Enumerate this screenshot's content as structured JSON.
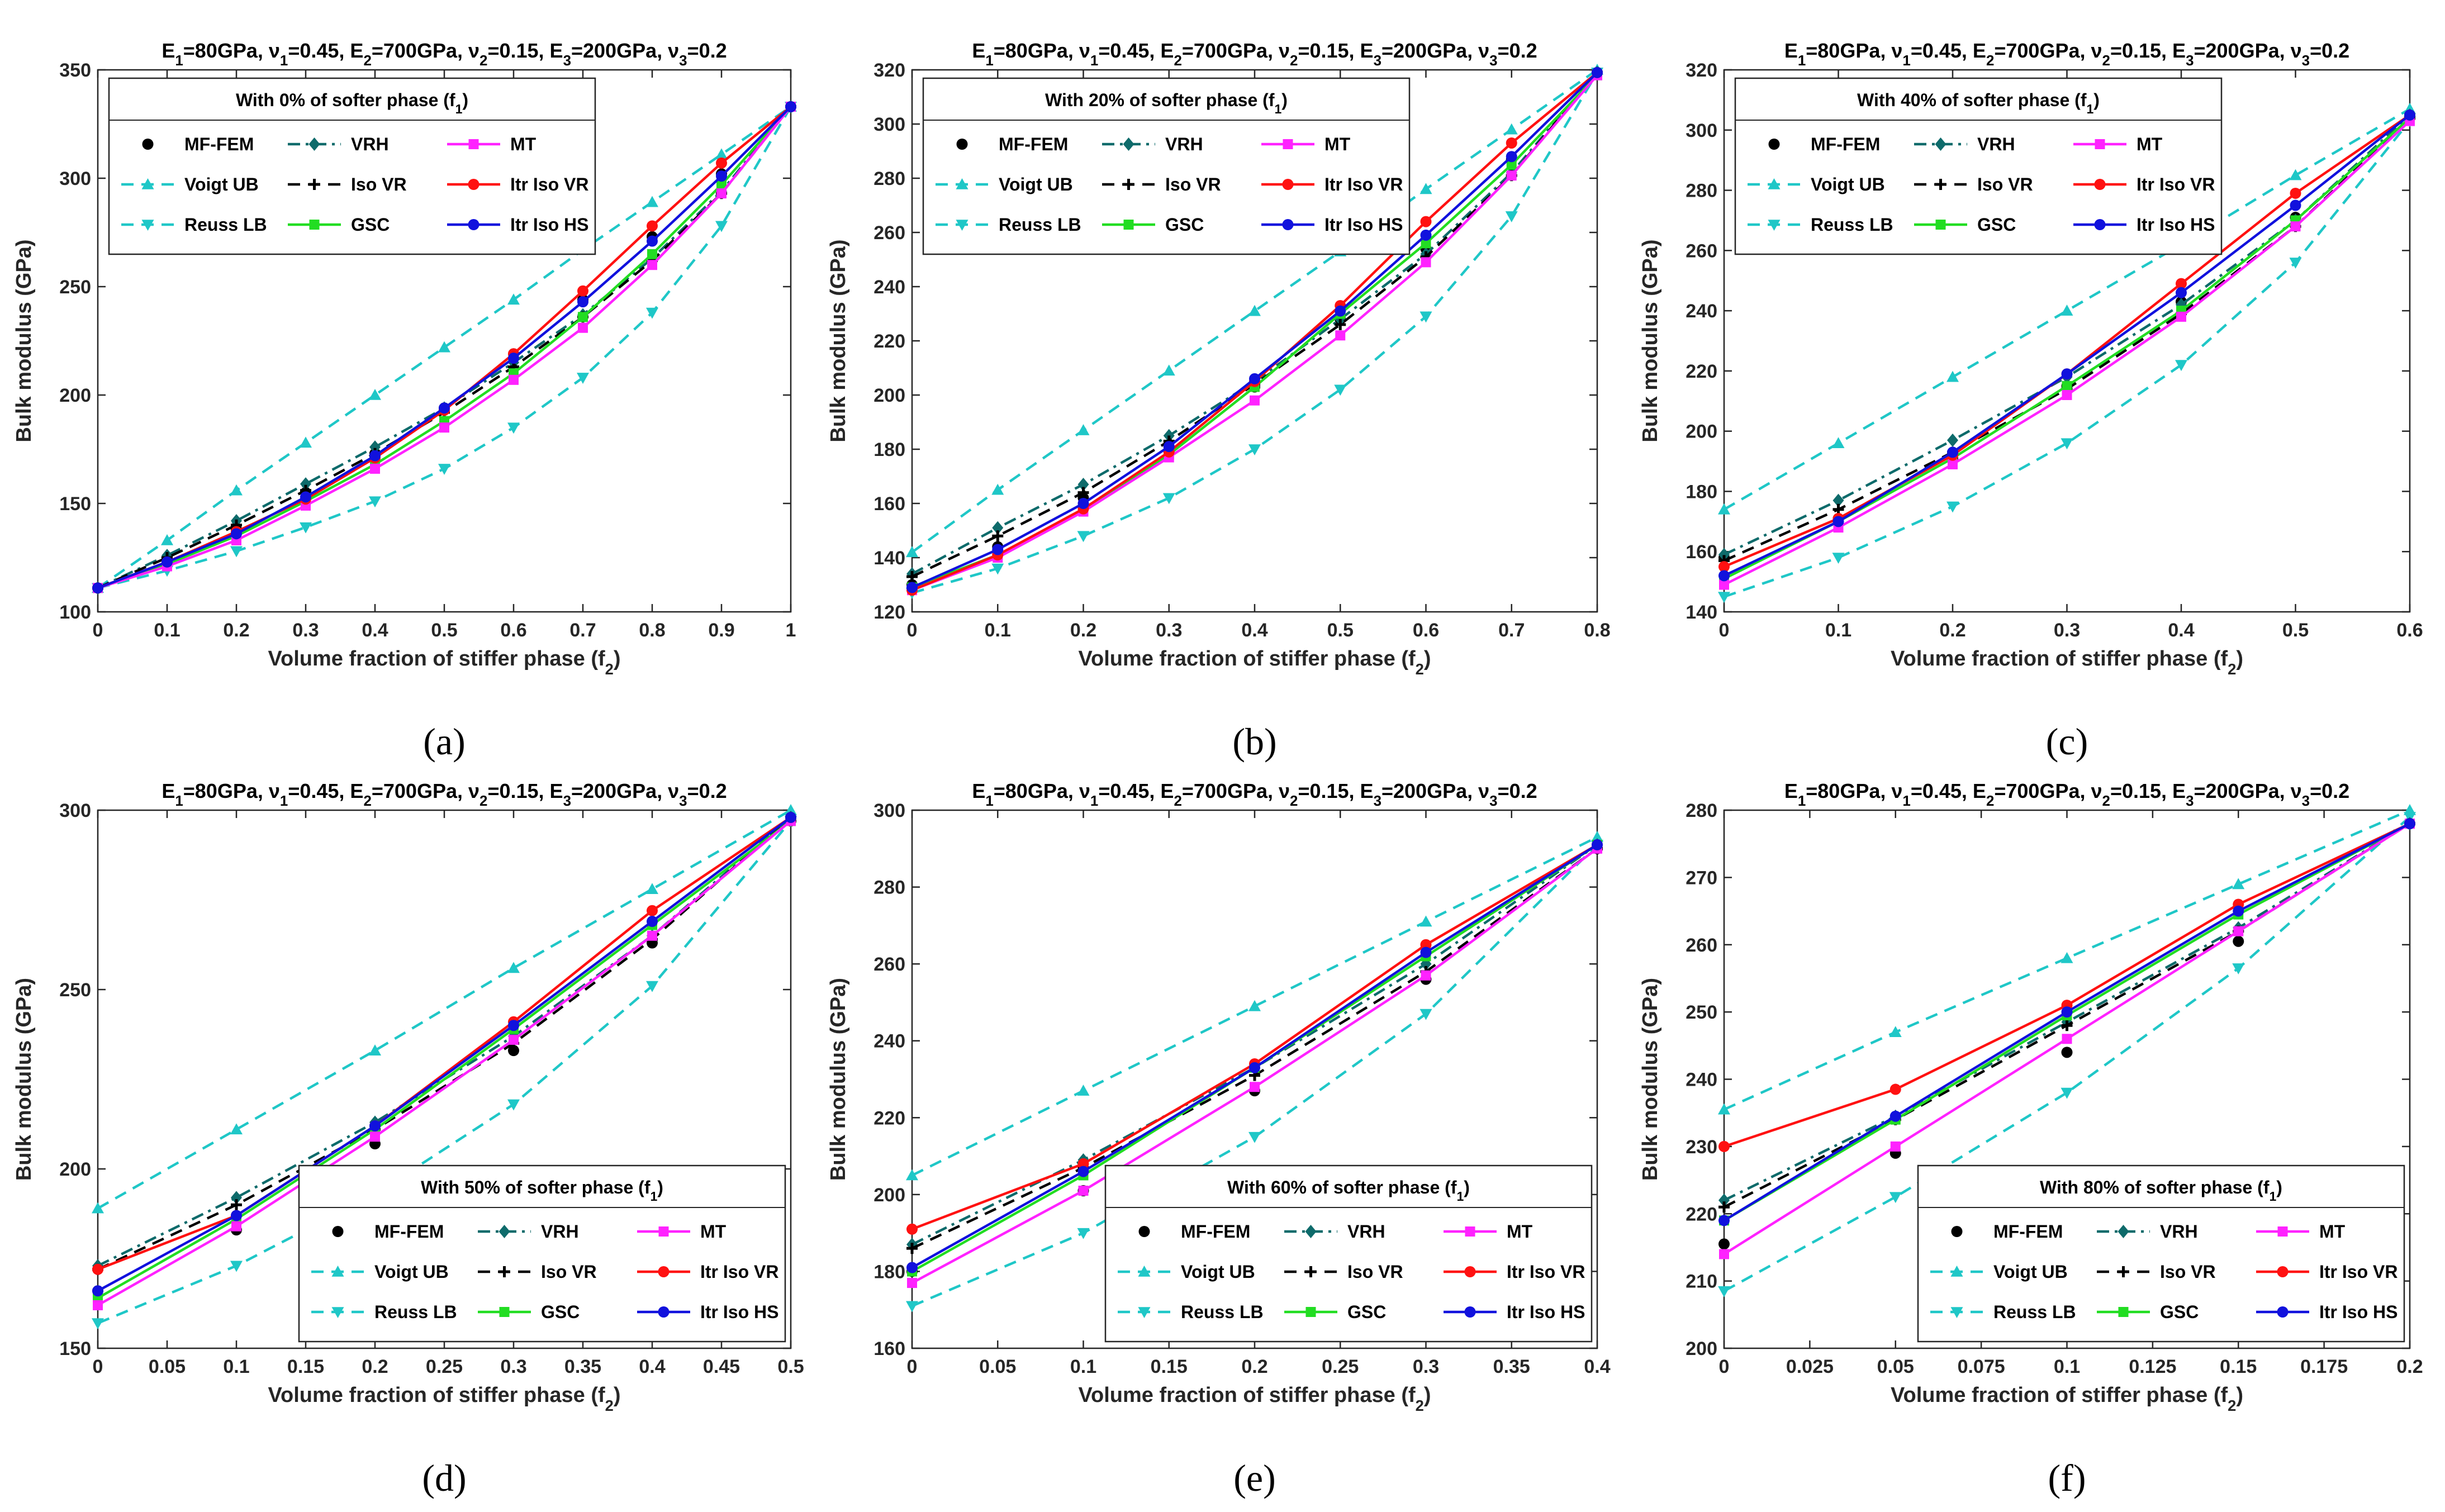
{
  "figure": {
    "panel_title_parts": {
      "e1": "E",
      "e1sub": "1",
      "e1val": "=80GPa,  ",
      "n1": "ν",
      "n1sub": "1",
      "n1val": "=0.45,  ",
      "e2": "E",
      "e2sub": "2",
      "e2val": "=700GPa,  ",
      "n2": "ν",
      "n2sub": "2",
      "n2val": "=0.15,  ",
      "e3": "E",
      "e3sub": "3",
      "e3val": "=200GPa,  ",
      "n3": "ν",
      "n3sub": "3",
      "n3val": "=0.2"
    },
    "xlabel_main": "Volume fraction of stiffer phase (f",
    "xlabel_sub": "2",
    "xlabel_close": ")",
    "ylabel": "Bulk modulus (GPa)",
    "legend_title_prefix": "With ",
    "legend_title_suffix": " of softer phase (f",
    "legend_title_sub": "1",
    "legend_title_close": ")",
    "series_styles": [
      {
        "name": "MF-FEM",
        "color": "#000000",
        "marker": "dot",
        "dash": "none"
      },
      {
        "name": "Voigt UB",
        "color": "#1fc7c7",
        "marker": "tri-up",
        "dash": "dash"
      },
      {
        "name": "Reuss LB",
        "color": "#1fc7c7",
        "marker": "tri-down",
        "dash": "dash"
      },
      {
        "name": "VRH",
        "color": "#0e6b6b",
        "marker": "diamond",
        "dash": "dashdot"
      },
      {
        "name": "Iso VR",
        "color": "#000000",
        "marker": "plus",
        "dash": "dash"
      },
      {
        "name": "GSC",
        "color": "#22dd22",
        "marker": "square",
        "dash": "solid"
      },
      {
        "name": "MT",
        "color": "#ff22ff",
        "marker": "square",
        "dash": "solid"
      },
      {
        "name": "Itr Iso VR",
        "color": "#ff1111",
        "marker": "dot",
        "dash": "solid"
      },
      {
        "name": "Itr Iso HS",
        "color": "#1111dd",
        "marker": "dot",
        "dash": "solid"
      }
    ]
  },
  "chart_data": [
    {
      "type": "line",
      "panel_label": "(a)",
      "legend_percent": "0%",
      "legend_position": "top-left",
      "xlim": [
        0,
        1
      ],
      "ylim": [
        100,
        350
      ],
      "xticks": [
        0,
        0.1,
        0.2,
        0.3,
        0.4,
        0.5,
        0.6,
        0.7,
        0.8,
        0.9,
        1
      ],
      "xtick_labels": [
        "0",
        "0.1",
        "0.2",
        "0.3",
        "0.4",
        "0.5",
        "0.6",
        "0.7",
        "0.8",
        "0.9",
        "1"
      ],
      "yticks": [
        100,
        150,
        200,
        250,
        300,
        350
      ],
      "ytick_labels": [
        "100",
        "150",
        "200",
        "250",
        "300",
        "350"
      ],
      "x": [
        0,
        0.1,
        0.2,
        0.3,
        0.4,
        0.5,
        0.6,
        0.7,
        0.8,
        0.9,
        1
      ],
      "series": [
        {
          "name": "MF-FEM",
          "values": [
            111,
            124,
            138,
            155,
            173,
            194,
            219,
            244,
            273,
            302,
            333
          ]
        },
        {
          "name": "Voigt UB",
          "values": [
            111,
            133,
            156,
            178,
            200,
            222,
            244,
            267,
            289,
            311,
            333
          ]
        },
        {
          "name": "Reuss LB",
          "values": [
            111,
            119,
            128,
            139,
            151,
            166,
            185,
            208,
            238,
            278,
            333
          ]
        },
        {
          "name": "VRH",
          "values": [
            111,
            126,
            142,
            159,
            176,
            194,
            215,
            237,
            263,
            294,
            333
          ]
        },
        {
          "name": "Iso VR",
          "values": [
            111,
            125,
            140,
            156,
            173,
            192,
            213,
            236,
            262,
            293,
            333
          ]
        },
        {
          "name": "GSC",
          "values": [
            111,
            122,
            135,
            151,
            168,
            188,
            210,
            236,
            265,
            297,
            333
          ]
        },
        {
          "name": "MT",
          "values": [
            111,
            121,
            133,
            149,
            166,
            185,
            207,
            231,
            260,
            293,
            333
          ]
        },
        {
          "name": "Itr Iso VR",
          "values": [
            111,
            123,
            137,
            152,
            171,
            193,
            219,
            248,
            278,
            307,
            333
          ]
        },
        {
          "name": "Itr Iso HS",
          "values": [
            111,
            123,
            136,
            153,
            172,
            194,
            217,
            243,
            271,
            301,
            333
          ]
        }
      ]
    },
    {
      "type": "line",
      "panel_label": "(b)",
      "legend_percent": "20%",
      "legend_position": "top-left",
      "xlim": [
        0,
        0.8
      ],
      "ylim": [
        120,
        320
      ],
      "xticks": [
        0,
        0.1,
        0.2,
        0.3,
        0.4,
        0.5,
        0.6,
        0.7,
        0.8
      ],
      "xtick_labels": [
        "0",
        "0.1",
        "0.2",
        "0.3",
        "0.4",
        "0.5",
        "0.6",
        "0.7",
        "0.8"
      ],
      "yticks": [
        120,
        140,
        160,
        180,
        200,
        220,
        240,
        260,
        280,
        300,
        320
      ],
      "ytick_labels": [
        "120",
        "140",
        "160",
        "180",
        "200",
        "220",
        "240",
        "260",
        "280",
        "300",
        "320"
      ],
      "x": [
        0,
        0.1,
        0.2,
        0.3,
        0.4,
        0.5,
        0.6,
        0.7,
        0.8
      ],
      "series": [
        {
          "name": "MF-FEM",
          "values": [
            130,
            144,
            162,
            181,
            203,
            228,
            254,
            287,
            319
          ]
        },
        {
          "name": "Voigt UB",
          "values": [
            142,
            165,
            187,
            209,
            231,
            253,
            276,
            298,
            320
          ]
        },
        {
          "name": "Reuss LB",
          "values": [
            127,
            136,
            148,
            162,
            180,
            202,
            229,
            266,
            319
          ]
        },
        {
          "name": "VRH",
          "values": [
            134,
            151,
            167,
            185,
            205,
            228,
            252,
            282,
            319
          ]
        },
        {
          "name": "Iso VR",
          "values": [
            133,
            148,
            164,
            183,
            204,
            226,
            251,
            281,
            319
          ]
        },
        {
          "name": "GSC",
          "values": [
            129,
            141,
            157,
            178,
            203,
            230,
            256,
            285,
            318
          ]
        },
        {
          "name": "MT",
          "values": [
            128,
            140,
            157,
            177,
            198,
            222,
            249,
            281,
            318
          ]
        },
        {
          "name": "Itr Iso VR",
          "values": [
            128,
            141,
            158,
            179,
            205,
            233,
            264,
            293,
            319
          ]
        },
        {
          "name": "Itr Iso HS",
          "values": [
            129,
            143,
            160,
            181,
            206,
            231,
            259,
            288,
            319
          ]
        }
      ]
    },
    {
      "type": "line",
      "panel_label": "(c)",
      "legend_percent": "40%",
      "legend_position": "top-left",
      "xlim": [
        0,
        0.6
      ],
      "ylim": [
        140,
        320
      ],
      "xticks": [
        0,
        0.1,
        0.2,
        0.3,
        0.4,
        0.5,
        0.6
      ],
      "xtick_labels": [
        "0",
        "0.1",
        "0.2",
        "0.3",
        "0.4",
        "0.5",
        "0.6"
      ],
      "yticks": [
        140,
        160,
        180,
        200,
        220,
        240,
        260,
        280,
        300,
        320
      ],
      "ytick_labels": [
        "140",
        "160",
        "180",
        "200",
        "220",
        "240",
        "260",
        "280",
        "300",
        "320"
      ],
      "x": [
        0,
        0.1,
        0.2,
        0.3,
        0.4,
        0.5,
        0.6
      ],
      "series": [
        {
          "name": "MF-FEM",
          "values": [
            158,
            171,
            191,
            215,
            243,
            271,
            304
          ]
        },
        {
          "name": "Voigt UB",
          "values": [
            174,
            196,
            218,
            240,
            262,
            285,
            307
          ]
        },
        {
          "name": "Reuss LB",
          "values": [
            145,
            158,
            175,
            196,
            222,
            256,
            303
          ]
        },
        {
          "name": "VRH",
          "values": [
            159,
            177,
            197,
            218,
            242,
            270,
            305
          ]
        },
        {
          "name": "Iso VR",
          "values": [
            157,
            174,
            193,
            214,
            239,
            268,
            304
          ]
        },
        {
          "name": "GSC",
          "values": [
            151,
            170,
            191,
            215,
            240,
            270,
            304
          ]
        },
        {
          "name": "MT",
          "values": [
            149,
            168,
            189,
            212,
            238,
            268,
            303
          ]
        },
        {
          "name": "Itr Iso VR",
          "values": [
            155,
            171,
            192,
            219,
            249,
            279,
            305
          ]
        },
        {
          "name": "Itr Iso HS",
          "values": [
            152,
            170,
            193,
            219,
            246,
            275,
            305
          ]
        }
      ]
    },
    {
      "type": "line",
      "panel_label": "(d)",
      "legend_percent": "50%",
      "legend_position": "bottom-right",
      "xlim": [
        0,
        0.5
      ],
      "ylim": [
        150,
        300
      ],
      "xticks": [
        0,
        0.05,
        0.1,
        0.15,
        0.2,
        0.25,
        0.3,
        0.35,
        0.4,
        0.45,
        0.5
      ],
      "xtick_labels": [
        "0",
        "0.05",
        "0.1",
        "0.15",
        "0.2",
        "0.25",
        "0.3",
        "0.35",
        "0.4",
        "0.45",
        "0.5"
      ],
      "yticks": [
        150,
        200,
        250,
        300
      ],
      "ytick_labels": [
        "150",
        "200",
        "250",
        "300"
      ],
      "x": [
        0,
        0.1,
        0.2,
        0.3,
        0.4,
        0.5
      ],
      "series": [
        {
          "name": "MF-FEM",
          "values": [
            166,
            183,
            207,
            233,
            263,
            297
          ]
        },
        {
          "name": "Voigt UB",
          "values": [
            189,
            211,
            233,
            256,
            278,
            300
          ]
        },
        {
          "name": "Reuss LB",
          "values": [
            157,
            173,
            193,
            218,
            251,
            297
          ]
        },
        {
          "name": "VRH",
          "values": [
            173,
            192,
            213,
            237,
            265,
            298
          ]
        },
        {
          "name": "Iso VR",
          "values": [
            172,
            190,
            211,
            235,
            264,
            298
          ]
        },
        {
          "name": "GSC",
          "values": [
            164,
            186,
            211,
            239,
            268,
            297
          ]
        },
        {
          "name": "MT",
          "values": [
            162,
            184,
            209,
            236,
            265,
            297
          ]
        },
        {
          "name": "Itr Iso VR",
          "values": [
            172,
            187,
            212,
            241,
            272,
            298
          ]
        },
        {
          "name": "Itr Iso HS",
          "values": [
            166,
            187,
            212,
            240,
            269,
            298
          ]
        }
      ]
    },
    {
      "type": "line",
      "panel_label": "(e)",
      "legend_percent": "60%",
      "legend_position": "bottom-right",
      "xlim": [
        0,
        0.4
      ],
      "ylim": [
        160,
        300
      ],
      "xticks": [
        0,
        0.05,
        0.1,
        0.15,
        0.2,
        0.25,
        0.3,
        0.35,
        0.4
      ],
      "xtick_labels": [
        "0",
        "0.05",
        "0.1",
        "0.15",
        "0.2",
        "0.25",
        "0.3",
        "0.35",
        "0.4"
      ],
      "yticks": [
        160,
        180,
        200,
        220,
        240,
        260,
        280,
        300
      ],
      "ytick_labels": [
        "160",
        "180",
        "200",
        "220",
        "240",
        "260",
        "280",
        "300"
      ],
      "x": [
        0,
        0.1,
        0.2,
        0.3,
        0.4
      ],
      "series": [
        {
          "name": "MF-FEM",
          "values": [
            180,
            201,
            227,
            256,
            290
          ]
        },
        {
          "name": "Voigt UB",
          "values": [
            205,
            227,
            249,
            271,
            293
          ]
        },
        {
          "name": "Reuss LB",
          "values": [
            171,
            190,
            215,
            247,
            291
          ]
        },
        {
          "name": "VRH",
          "values": [
            187,
            209,
            233,
            260,
            291
          ]
        },
        {
          "name": "Iso VR",
          "values": [
            186,
            207,
            231,
            258,
            290
          ]
        },
        {
          "name": "GSC",
          "values": [
            180,
            205,
            233,
            262,
            291
          ]
        },
        {
          "name": "MT",
          "values": [
            177,
            201,
            228,
            257,
            290
          ]
        },
        {
          "name": "Itr Iso VR",
          "values": [
            191,
            208,
            234,
            265,
            291
          ]
        },
        {
          "name": "Itr Iso HS",
          "values": [
            181,
            206,
            233,
            263,
            291
          ]
        }
      ]
    },
    {
      "type": "line",
      "panel_label": "(f)",
      "legend_percent": "80%",
      "legend_position": "bottom-right",
      "xlim": [
        0,
        0.2
      ],
      "ylim": [
        200,
        280
      ],
      "xticks": [
        0,
        0.025,
        0.05,
        0.075,
        0.1,
        0.125,
        0.15,
        0.175,
        0.2
      ],
      "xtick_labels": [
        "0",
        "0.025",
        "0.05",
        "0.075",
        "0.1",
        "0.125",
        "0.15",
        "0.175",
        "0.2"
      ],
      "yticks": [
        200,
        210,
        220,
        230,
        240,
        250,
        260,
        270,
        280
      ],
      "ytick_labels": [
        "200",
        "210",
        "220",
        "230",
        "240",
        "250",
        "260",
        "270",
        "280"
      ],
      "x": [
        0,
        0.05,
        0.1,
        0.15,
        0.2
      ],
      "series": [
        {
          "name": "MF-FEM",
          "values": [
            215.5,
            229,
            244,
            260.5,
            278
          ]
        },
        {
          "name": "Voigt UB",
          "values": [
            235.5,
            247,
            258,
            269,
            280
          ]
        },
        {
          "name": "Reuss LB",
          "values": [
            208.5,
            222.5,
            238,
            256.5,
            279
          ]
        },
        {
          "name": "VRH",
          "values": [
            222,
            234.5,
            248.5,
            262.5,
            278
          ]
        },
        {
          "name": "Iso VR",
          "values": [
            221,
            234,
            248,
            262,
            278
          ]
        },
        {
          "name": "GSC",
          "values": [
            219,
            234,
            249.5,
            264.5,
            278
          ]
        },
        {
          "name": "MT",
          "values": [
            214,
            230,
            246,
            262,
            278
          ]
        },
        {
          "name": "Itr Iso VR",
          "values": [
            230,
            238.5,
            251,
            266,
            278
          ]
        },
        {
          "name": "Itr Iso HS",
          "values": [
            219,
            234.5,
            250,
            265,
            278
          ]
        }
      ]
    }
  ]
}
